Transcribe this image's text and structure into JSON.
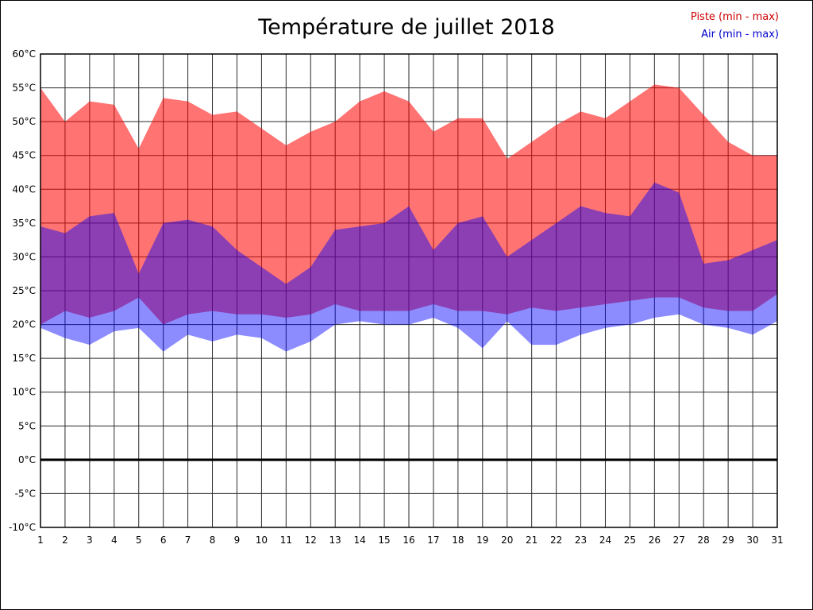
{
  "chart_data": {
    "type": "area",
    "title": "Température de juillet 2018",
    "legend": {
      "piste": "Piste (min - max)",
      "air": "Air (min - max)"
    },
    "xlabel": "",
    "ylabel": "",
    "x_days": [
      1,
      2,
      3,
      4,
      5,
      6,
      7,
      8,
      9,
      10,
      11,
      12,
      13,
      14,
      15,
      16,
      17,
      18,
      19,
      20,
      21,
      22,
      23,
      24,
      25,
      26,
      27,
      28,
      29,
      30,
      31
    ],
    "ylim": [
      -10,
      60
    ],
    "yticks": [
      {
        "value": 60,
        "label": "60°C"
      },
      {
        "value": 55,
        "label": "55°C"
      },
      {
        "value": 50,
        "label": "50°C"
      },
      {
        "value": 45,
        "label": "45°C"
      },
      {
        "value": 40,
        "label": "40°C"
      },
      {
        "value": 35,
        "label": "35°C"
      },
      {
        "value": 30,
        "label": "30°C"
      },
      {
        "value": 25,
        "label": "25°C"
      },
      {
        "value": 20,
        "label": "20°C"
      },
      {
        "value": 15,
        "label": "15°C"
      },
      {
        "value": 10,
        "label": "10°C"
      },
      {
        "value": 5,
        "label": "5°C"
      },
      {
        "value": 0,
        "label": "0°C"
      },
      {
        "value": -5,
        "label": "-5°C"
      },
      {
        "value": -10,
        "label": "-10°C"
      }
    ],
    "grid": true,
    "zero_line_value": 0,
    "series": [
      {
        "name": "Piste (min - max)",
        "fill": "rgba(255,0,0,0.55)",
        "text_color": "#cc0000",
        "max": [
          55,
          50,
          53,
          52.5,
          46,
          53.5,
          53,
          51,
          51.5,
          49,
          46.5,
          48.5,
          50,
          53,
          54.5,
          53,
          48.5,
          50.5,
          50.5,
          44.5,
          47,
          49.5,
          51.5,
          50.5,
          53,
          55.5,
          55,
          51,
          47,
          45,
          45
        ],
        "min": [
          20,
          22,
          21,
          22,
          24,
          20,
          21.5,
          22,
          21.5,
          21.5,
          21,
          21.5,
          23,
          22,
          22,
          22,
          23,
          22,
          22,
          21.5,
          22.5,
          22,
          22.5,
          23,
          23.5,
          24,
          24,
          22.5,
          22,
          22,
          24.5
        ]
      },
      {
        "name": "Air (min - max)",
        "fill": "rgba(0,0,255,0.45)",
        "text_color": "#0000cc",
        "max": [
          34.5,
          33.5,
          36,
          36.5,
          27.5,
          35,
          35.5,
          34.5,
          31,
          28.5,
          26,
          28.5,
          34,
          34.5,
          35,
          37.5,
          31,
          35,
          36,
          30,
          32.5,
          35,
          37.5,
          36.5,
          36,
          41,
          39.5,
          29,
          29.5,
          31,
          32.5
        ],
        "min": [
          19.5,
          18,
          17,
          19,
          19.5,
          16,
          18.5,
          17.5,
          18.5,
          18,
          16,
          17.5,
          20,
          20.5,
          20,
          20,
          21,
          19.5,
          16.5,
          20.5,
          17,
          17,
          18.5,
          19.5,
          20,
          21,
          21.5,
          20,
          19.5,
          18.5,
          20.5
        ]
      }
    ],
    "plot_colors": {
      "grid": "#2a2a2a",
      "axis_border": "#000000",
      "zero_line": "#000000",
      "background": "#ffffff"
    }
  }
}
